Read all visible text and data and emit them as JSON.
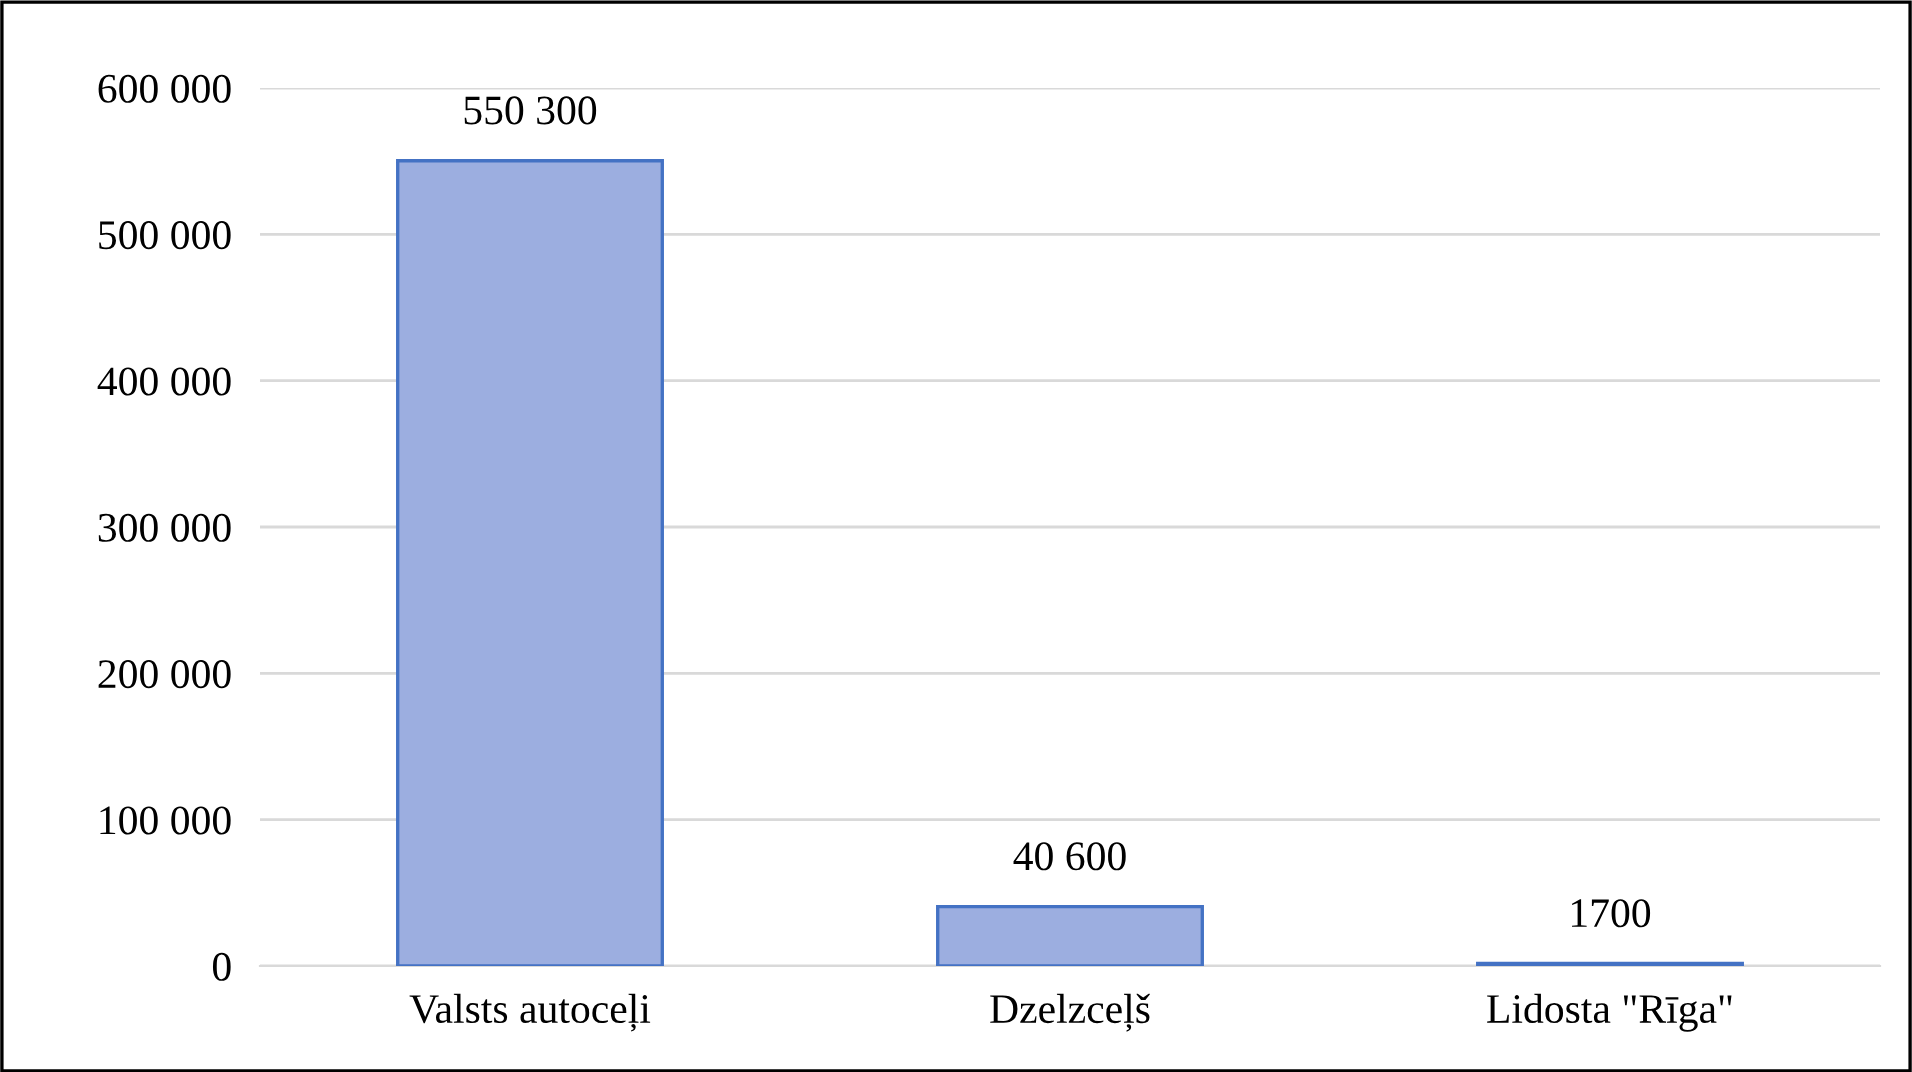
{
  "chart_data": {
    "type": "bar",
    "categories": [
      "Valsts autoceļi",
      "Dzelzceļš",
      "Lidosta \"Rīga\""
    ],
    "values": [
      550300,
      40600,
      1700
    ],
    "value_labels": [
      "550 300",
      "40 600",
      "1700"
    ],
    "color": "#9caee0",
    "ylim": [
      0,
      600000
    ],
    "yticks": [
      {
        "value": 0,
        "label": "0"
      },
      {
        "value": 100000,
        "label": "100 000"
      },
      {
        "value": 200000,
        "label": "200 000"
      },
      {
        "value": 300000,
        "label": "300 000"
      },
      {
        "value": 400000,
        "label": "400 000"
      },
      {
        "value": 500000,
        "label": "500 000"
      },
      {
        "value": 600000,
        "label": "600 000"
      }
    ],
    "grid": "y"
  }
}
